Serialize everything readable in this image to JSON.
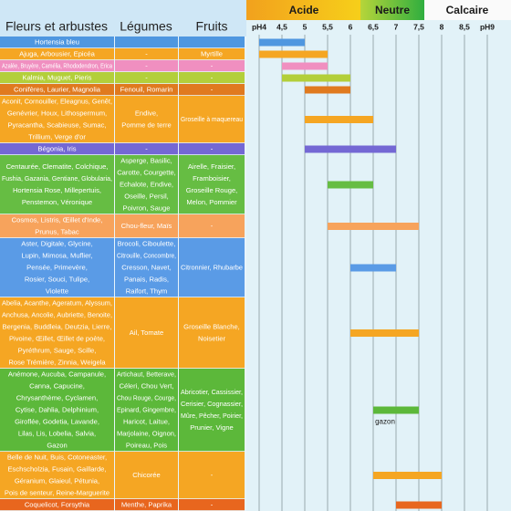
{
  "chart_data": {
    "type": "range",
    "columns": [
      "Fleurs et arbustes",
      "Légumes",
      "Fruits"
    ],
    "zones": [
      "Acide",
      "Neutre",
      "Calcaire"
    ],
    "xlim": [
      3.75,
      9.5
    ],
    "xticks": [
      {
        "value": 4,
        "label": "pH4"
      },
      {
        "value": 4.5,
        "label": "4,5"
      },
      5,
      {
        "value": 5.5,
        "label": "5,5"
      },
      6,
      {
        "value": 6.5,
        "label": "6,5"
      },
      7,
      {
        "value": 7.5,
        "label": "7,5"
      },
      8,
      {
        "value": 8.5,
        "label": "8,5"
      },
      {
        "value": 9,
        "label": "pH9"
      }
    ],
    "grid": true,
    "rows": [
      {
        "flowers": [
          "Hortensia bleu"
        ],
        "vegetables": [],
        "fruits": [],
        "color": "#4f97e0",
        "range": [
          4,
          5
        ]
      },
      {
        "flowers": [
          "Ajuga, Arbousier, Epicéa"
        ],
        "vegetables": [
          "-"
        ],
        "fruits": [
          "Myrtille"
        ],
        "color": "#f5a623",
        "range": [
          4,
          5.5
        ]
      },
      {
        "flowers": [
          "Azalée, Bruyère, Camélia, Rhododendron, Erica"
        ],
        "vegetables": [
          "-"
        ],
        "fruits": [
          "-"
        ],
        "color": "#f08fc0",
        "range": [
          4.5,
          5.5
        ]
      },
      {
        "flowers": [
          "Kalmia, Muguet, Pieris"
        ],
        "vegetables": [
          "-"
        ],
        "fruits": [
          "-"
        ],
        "color": "#b3cf3a",
        "range": [
          4.5,
          6
        ]
      },
      {
        "flowers": [
          "Conifères, Laurier, Magnolia"
        ],
        "vegetables": [
          "Fenouil, Romarin"
        ],
        "fruits": [
          "-"
        ],
        "color": "#e07a1f",
        "range": [
          5,
          6
        ]
      },
      {
        "flowers": [
          "Aconit, Cornouiller, Eleagnus, Genêt,",
          "Genévrier, Houx, Lithospermum,",
          "Pyracantha, Scabieuse, Sumac,",
          "Trillium, Verge d'or"
        ],
        "vegetables": [
          "Endive,",
          "Pomme de terre"
        ],
        "fruits": [
          "Groseille à maquereau"
        ],
        "color": "#f5a623",
        "range": [
          5,
          6.5
        ]
      },
      {
        "flowers": [
          "Bégonia, Iris"
        ],
        "vegetables": [
          "-"
        ],
        "fruits": [
          "-"
        ],
        "color": "#7468d4",
        "range": [
          5,
          7
        ]
      },
      {
        "flowers": [
          "Centaurée, Clematite, Colchique,",
          "Fushia, Gazania, Gentiane, Globularia,",
          "Hortensia Rose, Millepertuis,",
          "Penstemon, Véronique"
        ],
        "vegetables": [
          "Asperge, Basilic,",
          "Carotte, Courgette,",
          "Echalote, Endive,",
          "Oseille, Persil,",
          "Poivron, Sauge"
        ],
        "fruits": [
          "Airelle, Fraisier,",
          "Framboisier,",
          "Groseille Rouge,",
          "Melon, Pommier"
        ],
        "color": "#66bd43",
        "range": [
          5.5,
          6.5
        ]
      },
      {
        "flowers": [
          "Cosmos, Listris, Œillet d'Inde,",
          "Prunus, Tabac"
        ],
        "vegetables": [
          "Chou-fleur, Maïs"
        ],
        "fruits": [
          "-"
        ],
        "color": "#f7a35c",
        "range": [
          5.5,
          7.5
        ]
      },
      {
        "flowers": [
          "Aster, Digitale, Glycine,",
          "Lupin, Mimosa, Muflier,",
          "Pensée, Primevère,",
          "Rosier, Souci, Tulipe,",
          "Violette"
        ],
        "vegetables": [
          "Brocoli, Ciboulette,",
          "Citrouille, Concombre,",
          "Cresson, Navet,",
          "Panais, Radis,",
          "Raifort, Thym"
        ],
        "fruits": [
          "Citronnier, Rhubarbe"
        ],
        "color": "#5a9be6",
        "range": [
          6,
          7
        ]
      },
      {
        "flowers": [
          "Abelia, Acanthe, Ageratum, Alyssum,",
          "Anchusa, Ancolie, Aubriette, Benoite,",
          "Bergenia, Buddleia, Deutzia, Lierre,",
          "Pivoine, Œillet, Œillet de poète,",
          "Pyréthrum, Sauge, Scille,",
          "Rose Trémière, Zinnia, Weigela"
        ],
        "vegetables": [
          "Ail, Tomate"
        ],
        "fruits": [
          "Groseille Blanche,",
          "Noisetier"
        ],
        "color": "#f5a623",
        "range": [
          6,
          7.5
        ]
      },
      {
        "flowers": [
          "Anémone, Aucuba, Campanule,",
          "Canna, Capucine,",
          "Chrysanthème, Cyclamen,",
          "Cytise, Dahlia, Delphinium,",
          "Giroflée, Godetia, Lavande,",
          "Lilas, Lis, Lobelia, Salvia,",
          "Gazon"
        ],
        "vegetables": [
          "Artichaut, Betterave,",
          "Céleri, Chou Vert,",
          "Chou Rouge, Courge,",
          "Epinard, Gingembre,",
          "Haricot, Laitue,",
          "Marjolaine, Oignon,",
          "Poireau, Pois"
        ],
        "fruits": [
          "Abricotier, Cassissier,",
          "Cerisier, Cognassier,",
          "Mûre, Pêcher, Poirier,",
          "Prunier, Vigne"
        ],
        "color": "#5cb83a",
        "range": [
          6.5,
          7.5
        ],
        "annotation": "gazon"
      },
      {
        "flowers": [
          "Belle de Nuit, Buis, Cotoneaster,",
          "Eschscholzia, Fusain, Gaillarde,",
          "Géranium, Glaieul, Pétunia,",
          "Pois de senteur, Reine-Marguerite"
        ],
        "vegetables": [
          "Chicorée"
        ],
        "fruits": [
          "-"
        ],
        "color": "#f5a623",
        "range": [
          6.5,
          8
        ]
      },
      {
        "flowers": [
          "Coquelicot, Forsythia"
        ],
        "vegetables": [
          "Menthe, Paprika"
        ],
        "fruits": [
          "-"
        ],
        "color": "#e8661e",
        "range": [
          7,
          8
        ]
      }
    ]
  }
}
